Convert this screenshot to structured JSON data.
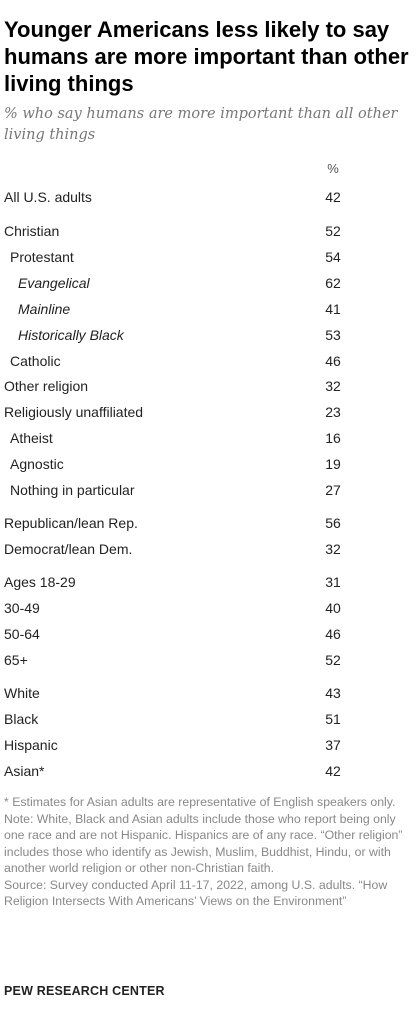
{
  "title": "Younger Americans less likely to say humans are more important than other living things",
  "subtitle": "% who say humans are more important than all other living things",
  "column_header": "%",
  "chart_data": {
    "type": "table",
    "title": "Younger Americans less likely to say humans are more important than other living things",
    "subtitle": "% who say humans are more important than all other living things",
    "unit": "%",
    "rows": [
      {
        "label": "All U.S. adults",
        "value": 42,
        "indent": 0,
        "italic": false
      },
      {
        "label": "Christian",
        "value": 52,
        "indent": 0,
        "italic": false
      },
      {
        "label": "Protestant",
        "value": 54,
        "indent": 1,
        "italic": false
      },
      {
        "label": "Evangelical",
        "value": 62,
        "indent": 2,
        "italic": true
      },
      {
        "label": "Mainline",
        "value": 41,
        "indent": 2,
        "italic": true
      },
      {
        "label": "Historically Black",
        "value": 53,
        "indent": 2,
        "italic": true
      },
      {
        "label": "Catholic",
        "value": 46,
        "indent": 1,
        "italic": false
      },
      {
        "label": "Other religion",
        "value": 32,
        "indent": 0,
        "italic": false
      },
      {
        "label": "Religiously unaffiliated",
        "value": 23,
        "indent": 0,
        "italic": false
      },
      {
        "label": "Atheist",
        "value": 16,
        "indent": 1,
        "italic": false
      },
      {
        "label": "Agnostic",
        "value": 19,
        "indent": 1,
        "italic": false
      },
      {
        "label": "Nothing in particular",
        "value": 27,
        "indent": 1,
        "italic": false
      },
      {
        "label": "Republican/lean Rep.",
        "value": 56,
        "indent": 0,
        "italic": false
      },
      {
        "label": "Democrat/lean Dem.",
        "value": 32,
        "indent": 0,
        "italic": false
      },
      {
        "label": "Ages 18-29",
        "value": 31,
        "indent": 0,
        "italic": false
      },
      {
        "label": "30-49",
        "value": 40,
        "indent": 0,
        "italic": false
      },
      {
        "label": "50-64",
        "value": 46,
        "indent": 0,
        "italic": false
      },
      {
        "label": "65+",
        "value": 52,
        "indent": 0,
        "italic": false
      },
      {
        "label": "White",
        "value": 43,
        "indent": 0,
        "italic": false
      },
      {
        "label": "Black",
        "value": 51,
        "indent": 0,
        "italic": false
      },
      {
        "label": "Hispanic",
        "value": 37,
        "indent": 0,
        "italic": false
      },
      {
        "label": "Asian*",
        "value": 42,
        "indent": 0,
        "italic": false
      }
    ]
  },
  "notes": {
    "asterisk": "* Estimates for Asian adults are representative of English speakers only.",
    "note": "Note: White, Black and Asian adults include those who report being only one race and are not Hispanic. Hispanics are of any race. “Other religion” includes those who identify as Jewish, Muslim, Buddhist, Hindu, or with another world religion or other non-Christian faith.",
    "source": "Source: Survey conducted April 11-17, 2022, among U.S. adults. “How Religion Intersects With Americans’ Views on the Environment”"
  },
  "source_org": "PEW RESEARCH CENTER",
  "colors": {
    "text": "#222222",
    "muted": "#888888",
    "divider": "#cfcfcf"
  }
}
